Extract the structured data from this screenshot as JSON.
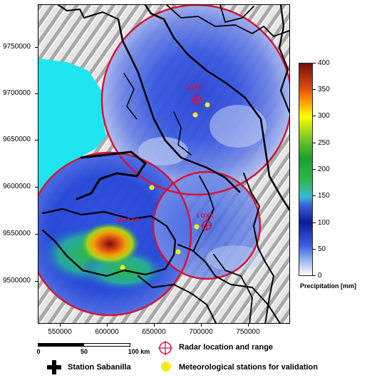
{
  "axes": {
    "y_ticks": [
      "9750000",
      "9700000",
      "9650000",
      "9600000",
      "9550000",
      "9500000"
    ],
    "x_ticks": [
      "550000",
      "600000",
      "650000",
      "700000",
      "750000"
    ]
  },
  "radars": [
    {
      "name": "CAXX"
    },
    {
      "name": "GUAXX"
    },
    {
      "name": "LOXX"
    }
  ],
  "colorbar": {
    "ticks": [
      "400",
      "350",
      "300",
      "250",
      "200",
      "150",
      "100",
      "50",
      "0"
    ],
    "title": "Precipitation [mm]",
    "min": 0,
    "max": 400
  },
  "scale": {
    "labels": [
      "0",
      "50",
      "100 km"
    ]
  },
  "legend": {
    "radar": "Radar location and range",
    "station": "Station Sabanilla",
    "meteo": "Meteorological stations for validation"
  },
  "colors": {
    "radar_ring": "#d4143a",
    "ocean": "#1ce5f0",
    "border": "#000000",
    "station_dot": "#f2ec1a"
  }
}
